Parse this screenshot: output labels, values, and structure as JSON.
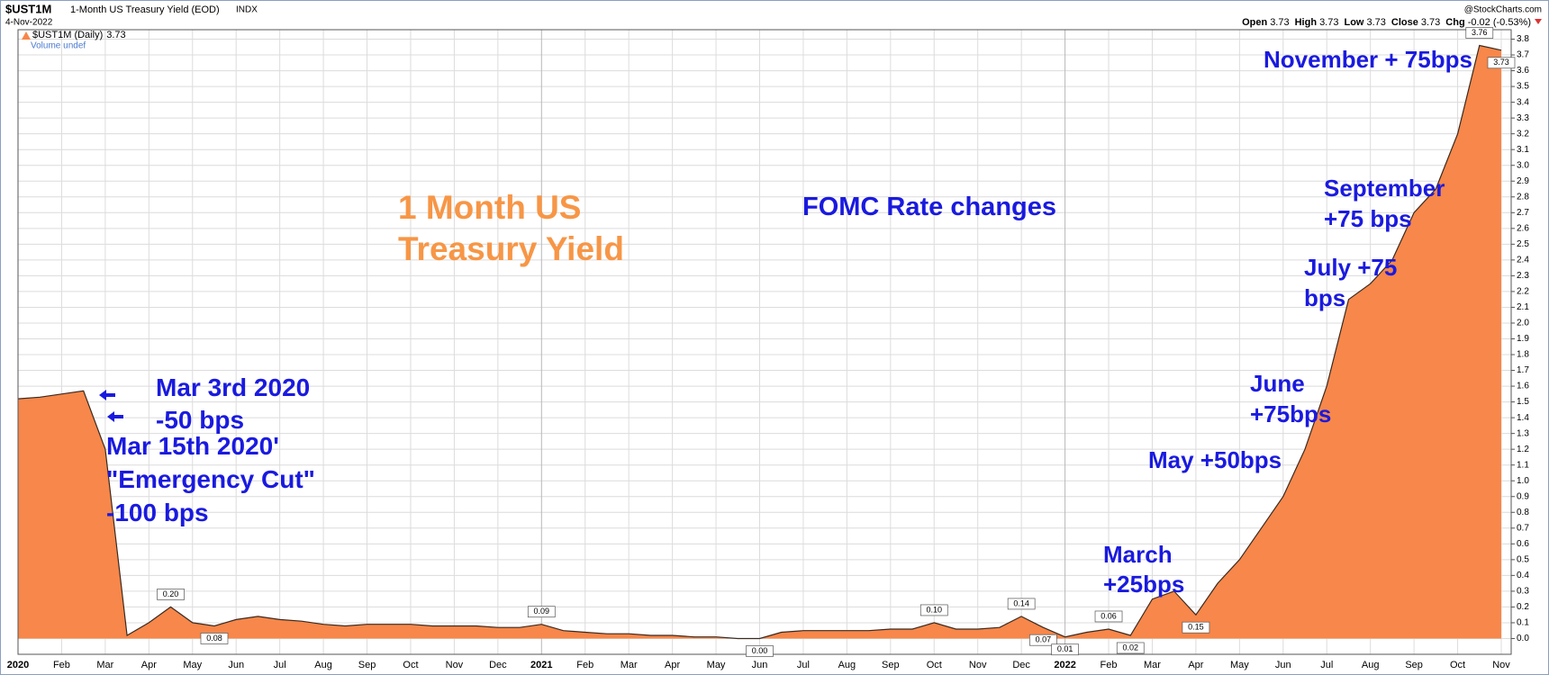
{
  "header": {
    "symbol": "$UST1M",
    "name": "1-Month US Treasury Yield (EOD)",
    "exchange": "INDX",
    "date": "4-Nov-2022",
    "source": "@StockCharts.com",
    "ohlc": [
      {
        "label": "Open",
        "value": 3.73
      },
      {
        "label": "High",
        "value": 3.73
      },
      {
        "label": "Low",
        "value": 3.73
      },
      {
        "label": "Close",
        "value": 3.73
      },
      {
        "label": "Chg",
        "value": "-0.02 (-0.53%)"
      }
    ],
    "volume": "Volume undef"
  },
  "chart_data": {
    "type": "area",
    "categories": [
      "2020",
      null,
      "Feb",
      null,
      "Mar",
      null,
      "Apr",
      null,
      "May",
      null,
      "Jun",
      null,
      "Jul",
      null,
      "Aug",
      null,
      "Sep",
      null,
      "Oct",
      null,
      "Nov",
      null,
      "Dec",
      null,
      "2021",
      null,
      "Feb",
      null,
      "Mar",
      null,
      "Apr",
      null,
      "May",
      null,
      "Jun",
      null,
      "Jul",
      null,
      "Aug",
      null,
      "Sep",
      null,
      "Oct",
      null,
      "Nov",
      null,
      "Dec",
      null,
      "2022",
      null,
      "Feb",
      null,
      "Mar",
      null,
      "Apr",
      null,
      "May",
      null,
      "Jun",
      null,
      "Jul",
      null,
      "Aug",
      null,
      "Sep",
      null,
      "Oct",
      null,
      "Nov"
    ],
    "series": [
      {
        "name": "$UST1M (Daily)",
        "color": "#f7874a",
        "values": [
          1.52,
          1.53,
          1.55,
          1.57,
          1.2,
          0.02,
          0.1,
          0.2,
          0.1,
          0.08,
          0.12,
          0.14,
          0.12,
          0.11,
          0.09,
          0.08,
          0.09,
          0.09,
          0.09,
          0.08,
          0.08,
          0.08,
          0.07,
          0.07,
          0.09,
          0.05,
          0.04,
          0.03,
          0.03,
          0.02,
          0.02,
          0.01,
          0.01,
          0.0,
          0.0,
          0.04,
          0.05,
          0.05,
          0.05,
          0.05,
          0.06,
          0.06,
          0.1,
          0.06,
          0.06,
          0.07,
          0.14,
          0.07,
          0.01,
          0.04,
          0.06,
          0.02,
          0.25,
          0.3,
          0.15,
          0.35,
          0.5,
          0.7,
          0.9,
          1.2,
          1.6,
          2.15,
          2.25,
          2.4,
          2.7,
          2.85,
          3.2,
          3.76,
          3.73
        ],
        "value_labels": [
          null,
          null,
          null,
          null,
          null,
          null,
          null,
          "0.20",
          null,
          "0.08",
          null,
          null,
          null,
          null,
          null,
          null,
          null,
          null,
          null,
          null,
          null,
          null,
          null,
          null,
          "0.09",
          null,
          null,
          null,
          null,
          null,
          null,
          null,
          null,
          null,
          "0.00",
          null,
          null,
          null,
          null,
          null,
          null,
          null,
          "0.10",
          null,
          null,
          null,
          "0.14",
          "0.07",
          "0.01",
          null,
          "0.06",
          "0.02",
          null,
          null,
          "0.15",
          null,
          null,
          null,
          null,
          null,
          null,
          null,
          null,
          null,
          null,
          null,
          null,
          "3.76",
          "3.73"
        ]
      }
    ],
    "ylim": [
      -0.1,
      3.86
    ],
    "yticks": [
      {
        "value": 0,
        "label": "0.0"
      },
      0.1,
      0.2,
      0.3,
      0.4,
      0.5,
      0.6,
      0.7,
      0.8,
      0.9,
      {
        "value": 1,
        "label": "1.0"
      },
      1.1,
      1.2,
      1.3,
      1.4,
      1.5,
      1.6,
      1.7,
      1.8,
      1.9,
      {
        "value": 2,
        "label": "2.0"
      },
      2.1,
      2.2,
      2.3,
      2.4,
      2.5,
      2.6,
      2.7,
      2.8,
      2.9,
      {
        "value": 3,
        "label": "3.0"
      },
      3.1,
      3.2,
      3.3,
      3.4,
      3.5,
      3.6,
      3.7,
      3.8
    ],
    "grid": true,
    "annotations": [
      {
        "lines": [
          "1 Month US",
          "Treasury Yield"
        ],
        "color": "#f79646"
      },
      {
        "lines": [
          "FOMC Rate changes"
        ],
        "color": "#1a1adf"
      },
      {
        "lines": [
          "Mar 3rd 2020",
          "-50 bps"
        ],
        "color": "#1a1adf"
      },
      {
        "lines": [
          "Mar 15th 2020'",
          "\"Emergency Cut\"",
          "-100 bps"
        ],
        "color": "#1a1adf"
      },
      {
        "lines": [
          "March",
          "+25bps"
        ],
        "color": "#1a1adf"
      },
      {
        "lines": [
          "May +50bps"
        ],
        "color": "#1a1adf"
      },
      {
        "lines": [
          "June",
          "+75bps"
        ],
        "color": "#1a1adf"
      },
      {
        "lines": [
          "July +75",
          "bps"
        ],
        "color": "#1a1adf"
      },
      {
        "lines": [
          "September",
          "+75 bps"
        ],
        "color": "#1a1adf"
      },
      {
        "lines": [
          "November + 75bps"
        ],
        "color": "#1a1adf"
      }
    ]
  }
}
